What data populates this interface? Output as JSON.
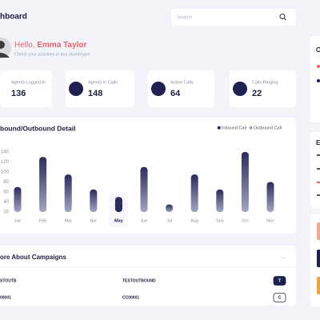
{
  "header": {
    "title": "hboard",
    "search_placeholder": "Search"
  },
  "greeting": {
    "hello": "Hello,",
    "name": "Emma Taylor",
    "subtitle": "Check your activities in this dashboard"
  },
  "stats": [
    {
      "label": "Agents Logged In",
      "value": 136
    },
    {
      "label": "Agents In Calls",
      "value": 148
    },
    {
      "label": "Active Calls",
      "value": 64
    },
    {
      "label": "Calls Ringing",
      "value": 22
    }
  ],
  "chart_data": {
    "type": "bar",
    "title": "bound/Outbound Detail",
    "legend": [
      {
        "name": "Inbound Call",
        "color": "#1f2150"
      },
      {
        "name": "Outbound Call",
        "color": "#9a9cbc"
      }
    ],
    "categories": [
      "Jan",
      "Feb",
      "Mar",
      "Apr",
      "May",
      "Jun",
      "Jul",
      "Aug",
      "Sep",
      "Oct",
      "Nov"
    ],
    "values": [
      70,
      130,
      95,
      65,
      50,
      110,
      35,
      95,
      65,
      140,
      80
    ],
    "color": "#2a2c5c",
    "selected": 4,
    "ylim": [
      20,
      140
    ],
    "yticks": [
      20,
      40,
      60,
      80,
      100,
      120,
      140
    ]
  },
  "campaigns": {
    "title": "ore About Campaigns",
    "more": "...",
    "rows": [
      [
        "STOUTB",
        "TESTOUTBOUND",
        "T"
      ],
      [
        "00001",
        "CC00001",
        "C"
      ]
    ]
  },
  "side": {
    "cards": [
      "C",
      "E"
    ]
  }
}
